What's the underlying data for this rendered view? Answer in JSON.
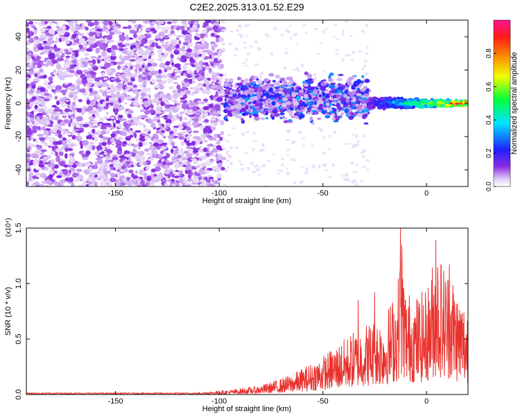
{
  "figure": {
    "title": "C2E2.2025.313.01.52.E29"
  },
  "colors": {
    "line": "#e8322d",
    "axis": "#000000",
    "scatter_light": "#d9c2f2",
    "scatter_dark": "#7a22e0"
  },
  "chart_data": [
    {
      "type": "heatmap",
      "xlabel": "Height of straight line (km)",
      "ylabel": "Frequency (Hz)",
      "xlim": [
        -193,
        20
      ],
      "ylim": [
        -50,
        50
      ],
      "xticks": [
        -150,
        -100,
        -50,
        0
      ],
      "yticks": [
        -40,
        -20,
        0,
        20,
        40
      ],
      "grid": false,
      "colorbar": {
        "label": "Normalized spectral amplitude",
        "range": [
          0,
          1
        ],
        "ticks": [
          "0.0",
          "0.2",
          "0.4",
          "0.6",
          "0.8"
        ],
        "colormap": "rainbow (violet→blue→cyan→green→yellow→red→magenta)"
      },
      "regions": [
        {
          "x_range": [
            -193,
            -98
          ],
          "description": "broadband noise, amplitude ~0.0-0.1, across all frequencies"
        },
        {
          "x_range": [
            -97,
            -28
          ],
          "frequency_band_hz": [
            -10,
            15
          ],
          "amplitude": [
            0.05,
            0.35
          ]
        },
        {
          "x_range": [
            -28,
            20
          ],
          "frequency_band_hz": [
            -4,
            4
          ],
          "amplitude": [
            0.2,
            1.0
          ],
          "center_hz": 0
        }
      ]
    },
    {
      "type": "line",
      "xlabel": "Height of straight line (km)",
      "ylabel": "SNR (10 * v/v)",
      "y_multiplier": "(x10⁴)",
      "xlim": [
        -193,
        20
      ],
      "ylim": [
        0,
        1.5
      ],
      "xticks": [
        -150,
        -100,
        -50,
        0
      ],
      "yticks": [
        "0.0",
        "0.5",
        "1.0",
        "1.5"
      ],
      "grid": false,
      "series": [
        {
          "color": "#e8322d",
          "envelope": {
            "x": [
              -193,
              -110,
              -95,
              -80,
              -65,
              -50,
              -40,
              -30,
              -20,
              -14,
              -12,
              -10,
              -5,
              0,
              5,
              8,
              12,
              15,
              20
            ],
            "y": [
              0.015,
              0.02,
              0.04,
              0.08,
              0.18,
              0.35,
              0.5,
              0.65,
              0.72,
              1.0,
              1.5,
              0.95,
              0.9,
              0.95,
              1.4,
              1.2,
              1.15,
              0.95,
              0.8
            ]
          },
          "peaks": [
            {
              "x": -12.5,
              "y": 1.5
            },
            {
              "x": 4.5,
              "y": 1.39
            },
            {
              "x": 11,
              "y": 1.17
            },
            {
              "x": -25,
              "y": 0.92
            },
            {
              "x": -33,
              "y": 0.85
            }
          ]
        }
      ]
    }
  ]
}
